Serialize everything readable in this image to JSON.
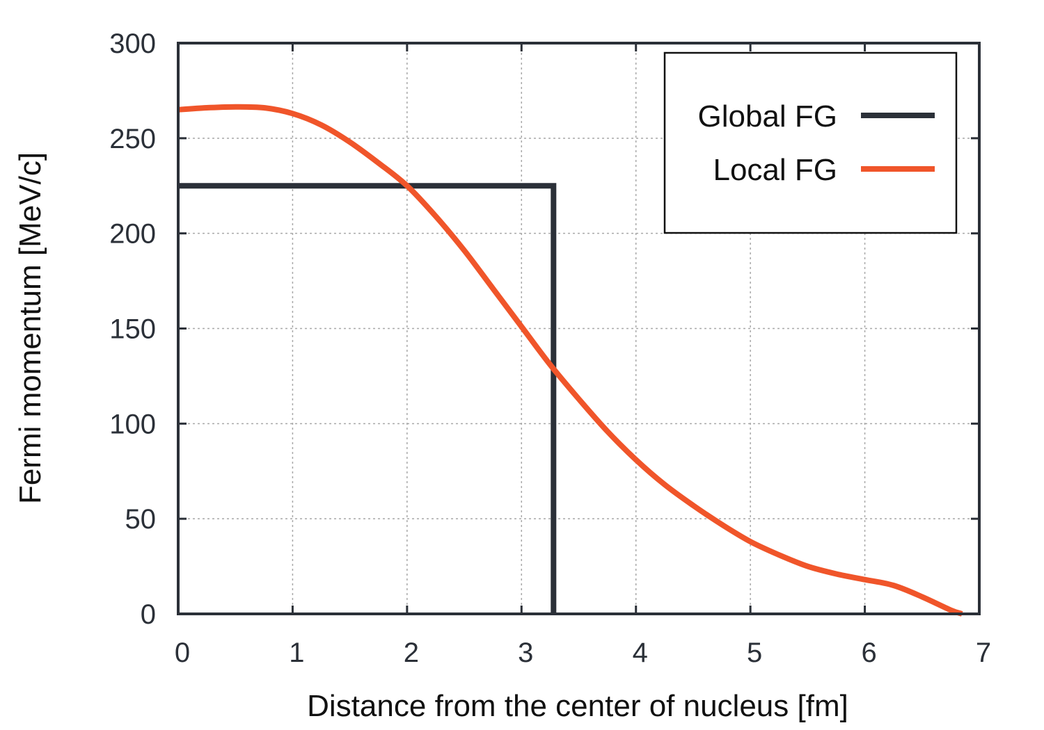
{
  "chart_data": {
    "type": "line",
    "xlabel": "Distance from the center of nucleus [fm]",
    "ylabel": "Fermi momentum [MeV/c]",
    "xlim": [
      0,
      7
    ],
    "ylim": [
      0,
      300
    ],
    "xticks": [
      "0",
      "1",
      "2",
      "3",
      "4",
      "5",
      "6",
      "7"
    ],
    "yticks": [
      "0",
      "50",
      "100",
      "150",
      "200",
      "250",
      "300"
    ],
    "grid": true,
    "legend_position": "top-right",
    "series": [
      {
        "name": "Global FG",
        "color": "#2b3038",
        "points": [
          [
            0,
            225
          ],
          [
            3.28,
            225
          ],
          [
            3.28,
            0
          ]
        ]
      },
      {
        "name": "Local FG",
        "color": "#f0552a",
        "points": [
          [
            0,
            265
          ],
          [
            0.25,
            266
          ],
          [
            0.5,
            266.5
          ],
          [
            0.75,
            266
          ],
          [
            1.0,
            263
          ],
          [
            1.25,
            257
          ],
          [
            1.5,
            248
          ],
          [
            1.75,
            237
          ],
          [
            2.0,
            225
          ],
          [
            2.25,
            209
          ],
          [
            2.5,
            191
          ],
          [
            2.75,
            171
          ],
          [
            3.0,
            151
          ],
          [
            3.25,
            131
          ],
          [
            3.5,
            113
          ],
          [
            3.75,
            96
          ],
          [
            4.0,
            81
          ],
          [
            4.25,
            68
          ],
          [
            4.5,
            57
          ],
          [
            4.75,
            47
          ],
          [
            5.0,
            38
          ],
          [
            5.25,
            31
          ],
          [
            5.5,
            25
          ],
          [
            5.75,
            21
          ],
          [
            6.0,
            18
          ],
          [
            6.25,
            15
          ],
          [
            6.5,
            9
          ],
          [
            6.75,
            2
          ],
          [
            6.85,
            0
          ]
        ]
      }
    ]
  }
}
